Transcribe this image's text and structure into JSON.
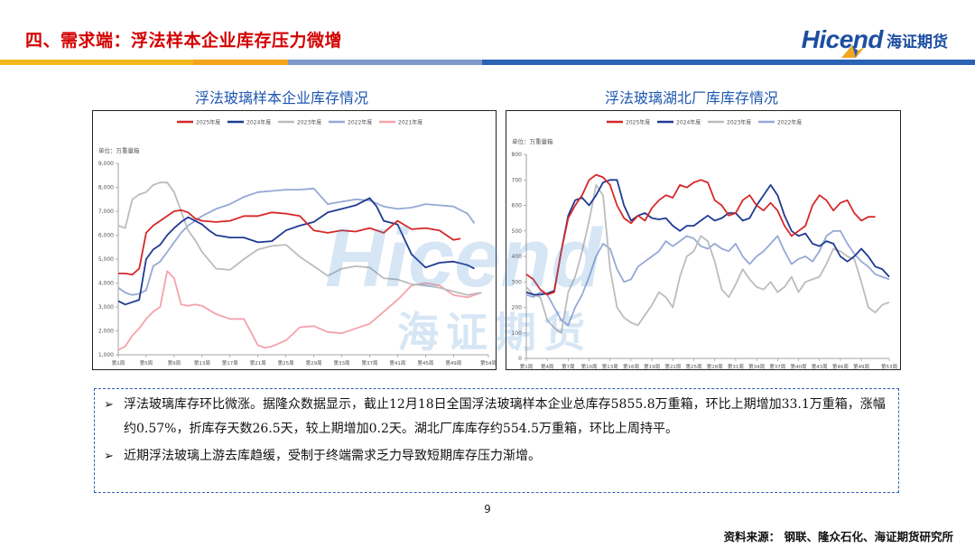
{
  "header": {
    "title": "四、需求端：浮法样本企业库存压力微增",
    "logo_en": "Hicend",
    "logo_cn": "海证期货",
    "colors": {
      "title": "#d40000",
      "brand": "#1c4ea1"
    }
  },
  "watermark": {
    "en": "Hicend",
    "cn": "海证期货"
  },
  "chart_data": [
    {
      "type": "line",
      "title": "浮法玻璃样本企业库存情况",
      "unit": "单位：万重量箱",
      "ylim": [
        1000,
        9000
      ],
      "yticks": [
        "1,000",
        "2,000",
        "3,000",
        "4,000",
        "5,000",
        "6,000",
        "7,000",
        "8,000",
        "9,000"
      ],
      "xlim": [
        1,
        54
      ],
      "xticks": [
        {
          "w": 1,
          "label": "第1周"
        },
        {
          "w": 5,
          "label": "第5周"
        },
        {
          "w": 9,
          "label": "第9周"
        },
        {
          "w": 13,
          "label": "第13周"
        },
        {
          "w": 17,
          "label": "第17周"
        },
        {
          "w": 21,
          "label": "第21周"
        },
        {
          "w": 25,
          "label": "第25周"
        },
        {
          "w": 29,
          "label": "第29周"
        },
        {
          "w": 33,
          "label": "第33周"
        },
        {
          "w": 37,
          "label": "第37周"
        },
        {
          "w": 41,
          "label": "第41周"
        },
        {
          "w": 45,
          "label": "第45周"
        },
        {
          "w": 49,
          "label": "第49周"
        },
        {
          "w": 54,
          "label": "第54周"
        }
      ],
      "legend_position": "top",
      "series": [
        {
          "name": "2025年度",
          "color": "#d62728",
          "x": [
            1,
            2,
            3,
            4,
            5,
            6,
            7,
            8,
            9,
            10,
            11,
            12,
            13,
            15,
            17,
            19,
            21,
            23,
            25,
            27,
            29,
            31,
            33,
            35,
            37,
            39,
            41,
            43,
            45,
            47,
            49,
            50
          ],
          "y": [
            4400,
            4400,
            4350,
            4600,
            6100,
            6400,
            6600,
            6800,
            7000,
            7050,
            6950,
            6700,
            6600,
            6550,
            6600,
            6800,
            6800,
            6950,
            6900,
            6800,
            6200,
            6100,
            6200,
            6150,
            6300,
            6100,
            6600,
            6250,
            6300,
            6200,
            5800,
            5856
          ]
        },
        {
          "name": "2024年度",
          "color": "#1f3a93",
          "x": [
            1,
            2,
            3,
            4,
            5,
            6,
            7,
            8,
            9,
            10,
            11,
            12,
            13,
            14,
            15,
            17,
            19,
            21,
            23,
            25,
            27,
            29,
            31,
            33,
            35,
            37,
            38,
            39,
            41,
            43,
            45,
            47,
            49,
            51,
            52
          ],
          "y": [
            3250,
            3100,
            3200,
            3300,
            5000,
            5400,
            5600,
            6000,
            6300,
            6550,
            6750,
            6600,
            6450,
            6200,
            6000,
            5900,
            5900,
            5700,
            5750,
            6200,
            6400,
            6550,
            6950,
            7100,
            7250,
            7550,
            7200,
            6600,
            6450,
            5200,
            4650,
            4850,
            4900,
            4750,
            4600
          ]
        },
        {
          "name": "2023年度",
          "color": "#bcbcbc",
          "x": [
            1,
            2,
            3,
            4,
            5,
            6,
            7,
            8,
            9,
            10,
            11,
            12,
            13,
            15,
            17,
            19,
            21,
            23,
            25,
            27,
            29,
            31,
            33,
            35,
            37,
            39,
            41,
            43,
            45,
            47,
            49,
            51,
            53
          ],
          "y": [
            6400,
            6300,
            7500,
            7700,
            7800,
            8100,
            8200,
            8200,
            7800,
            7000,
            6200,
            5800,
            5300,
            4600,
            4550,
            5000,
            5400,
            5550,
            5600,
            5100,
            4700,
            4300,
            4600,
            4700,
            4650,
            4200,
            4150,
            3950,
            3900,
            3800,
            3650,
            3500,
            3600
          ]
        },
        {
          "name": "2022年度",
          "color": "#95a8d6",
          "x": [
            1,
            2,
            3,
            4,
            5,
            6,
            7,
            8,
            9,
            10,
            11,
            12,
            13,
            15,
            17,
            19,
            21,
            23,
            25,
            27,
            29,
            31,
            33,
            35,
            37,
            39,
            41,
            43,
            45,
            47,
            49,
            51,
            52
          ],
          "y": [
            3800,
            3600,
            3500,
            3550,
            3700,
            4700,
            4900,
            5300,
            5700,
            6100,
            6400,
            6600,
            6800,
            7100,
            7300,
            7600,
            7800,
            7850,
            7900,
            7900,
            7950,
            7300,
            7400,
            7500,
            7450,
            7200,
            7100,
            7150,
            7300,
            7250,
            7200,
            6900,
            6500
          ]
        },
        {
          "name": "2021年度",
          "color": "#f4a3ab",
          "x": [
            1,
            2,
            3,
            4,
            5,
            6,
            7,
            8,
            9,
            10,
            11,
            12,
            13,
            15,
            17,
            19,
            21,
            22,
            23,
            25,
            27,
            29,
            31,
            33,
            35,
            37,
            39,
            41,
            43,
            45,
            47,
            49,
            51,
            53
          ],
          "y": [
            1200,
            1350,
            1800,
            2100,
            2500,
            2800,
            3000,
            4500,
            4200,
            3100,
            3050,
            3100,
            3050,
            2700,
            2500,
            2500,
            1400,
            1300,
            1350,
            1600,
            2150,
            2200,
            1950,
            1900,
            2100,
            2300,
            2800,
            3300,
            3900,
            4000,
            3900,
            3500,
            3400,
            3600
          ]
        }
      ]
    },
    {
      "type": "line",
      "title": "浮法玻璃湖北厂库库存情况",
      "unit": "单位：万重量箱",
      "ylim": [
        0,
        800
      ],
      "yticks": [
        "0",
        "100",
        "200",
        "300",
        "400",
        "500",
        "600",
        "700",
        "800"
      ],
      "xlim": [
        1,
        53
      ],
      "xticks": [
        {
          "w": 1,
          "label": "第1周"
        },
        {
          "w": 4,
          "label": "第4周"
        },
        {
          "w": 7,
          "label": "第7周"
        },
        {
          "w": 10,
          "label": "第10周"
        },
        {
          "w": 13,
          "label": "第13周"
        },
        {
          "w": 16,
          "label": "第16周"
        },
        {
          "w": 19,
          "label": "第19周"
        },
        {
          "w": 22,
          "label": "第22周"
        },
        {
          "w": 25,
          "label": "第25周"
        },
        {
          "w": 28,
          "label": "第28周"
        },
        {
          "w": 31,
          "label": "第31周"
        },
        {
          "w": 34,
          "label": "第34周"
        },
        {
          "w": 37,
          "label": "第37周"
        },
        {
          "w": 40,
          "label": "第40周"
        },
        {
          "w": 43,
          "label": "第43周"
        },
        {
          "w": 46,
          "label": "第46周"
        },
        {
          "w": 49,
          "label": "第49周"
        },
        {
          "w": 53,
          "label": "第53周"
        }
      ],
      "legend_position": "top",
      "series": [
        {
          "name": "2025年度",
          "color": "#d62728",
          "x": [
            1,
            2,
            3,
            4,
            5,
            6,
            7,
            8,
            9,
            10,
            11,
            12,
            13,
            14,
            15,
            16,
            17,
            18,
            19,
            20,
            21,
            22,
            23,
            24,
            25,
            26,
            27,
            28,
            29,
            30,
            31,
            32,
            33,
            34,
            35,
            36,
            37,
            38,
            39,
            40,
            41,
            42,
            43,
            44,
            45,
            46,
            47,
            48,
            49,
            50,
            51
          ],
          "y": [
            330,
            310,
            270,
            250,
            260,
            420,
            550,
            600,
            640,
            700,
            720,
            710,
            680,
            600,
            550,
            530,
            560,
            540,
            590,
            620,
            640,
            630,
            680,
            670,
            690,
            700,
            690,
            620,
            600,
            560,
            570,
            620,
            640,
            600,
            580,
            610,
            580,
            520,
            480,
            500,
            520,
            600,
            640,
            620,
            580,
            610,
            620,
            570,
            540,
            555,
            555
          ]
        },
        {
          "name": "2024年度",
          "color": "#1f3a93",
          "x": [
            1,
            2,
            3,
            4,
            5,
            6,
            7,
            8,
            9,
            10,
            11,
            12,
            13,
            14,
            15,
            16,
            17,
            18,
            19,
            20,
            21,
            22,
            23,
            24,
            25,
            26,
            27,
            28,
            29,
            30,
            31,
            32,
            33,
            34,
            35,
            36,
            37,
            38,
            39,
            40,
            41,
            42,
            43,
            44,
            45,
            46,
            47,
            48,
            49,
            50,
            51,
            52,
            53
          ],
          "y": [
            260,
            250,
            250,
            255,
            265,
            420,
            560,
            620,
            630,
            600,
            640,
            690,
            700,
            700,
            600,
            540,
            560,
            570,
            550,
            545,
            550,
            520,
            500,
            520,
            520,
            540,
            560,
            540,
            550,
            570,
            570,
            540,
            550,
            600,
            640,
            680,
            640,
            560,
            500,
            480,
            490,
            450,
            440,
            460,
            450,
            400,
            380,
            400,
            430,
            400,
            360,
            350,
            320
          ]
        },
        {
          "name": "2023年度",
          "color": "#bcbcbc",
          "x": [
            1,
            2,
            3,
            4,
            5,
            6,
            7,
            8,
            9,
            10,
            11,
            12,
            13,
            14,
            15,
            16,
            17,
            18,
            19,
            20,
            21,
            22,
            23,
            24,
            25,
            26,
            27,
            28,
            29,
            30,
            31,
            32,
            33,
            34,
            35,
            36,
            37,
            38,
            39,
            40,
            41,
            42,
            43,
            44,
            45,
            46,
            47,
            48,
            49,
            50,
            51,
            52,
            53
          ],
          "y": [
            280,
            250,
            240,
            150,
            120,
            100,
            260,
            320,
            420,
            540,
            680,
            640,
            350,
            200,
            160,
            140,
            130,
            170,
            210,
            260,
            240,
            200,
            320,
            400,
            420,
            480,
            460,
            380,
            270,
            240,
            290,
            350,
            310,
            280,
            270,
            300,
            260,
            280,
            320,
            260,
            300,
            310,
            320,
            370,
            430,
            420,
            400,
            390,
            300,
            200,
            180,
            210,
            220
          ]
        },
        {
          "name": "2022年度",
          "color": "#95a8d6",
          "x": [
            1,
            2,
            3,
            4,
            5,
            6,
            7,
            8,
            9,
            10,
            11,
            12,
            13,
            14,
            15,
            16,
            17,
            18,
            19,
            20,
            21,
            22,
            23,
            24,
            25,
            26,
            27,
            28,
            29,
            30,
            31,
            32,
            33,
            34,
            35,
            36,
            37,
            38,
            39,
            40,
            41,
            42,
            43,
            44,
            45,
            46,
            47,
            48,
            49,
            50,
            51,
            52,
            53
          ],
          "y": [
            250,
            240,
            260,
            250,
            200,
            150,
            130,
            200,
            250,
            320,
            400,
            450,
            430,
            350,
            300,
            310,
            360,
            380,
            400,
            420,
            460,
            440,
            460,
            480,
            470,
            440,
            430,
            450,
            430,
            420,
            450,
            400,
            370,
            400,
            420,
            450,
            480,
            420,
            370,
            390,
            400,
            380,
            420,
            480,
            500,
            500,
            450,
            410,
            380,
            360,
            330,
            320,
            310
          ]
        }
      ]
    }
  ],
  "summary": {
    "bullets": [
      "浮法玻璃库存环比微涨。据隆众数据显示，截止12月18日全国浮法玻璃样本企业总库存5855.8万重箱，环比上期增加33.1万重箱，涨幅约0.57%，折库存天数26.5天，较上期增加0.2天。湖北厂库库存约554.5万重箱，环比上周持平。",
      "近期浮法玻璃上游去库趋缓，受制于终端需求乏力导致短期库存压力渐增。"
    ]
  },
  "footer": {
    "page_number": "9",
    "source": "资料来源： 钢联、隆众石化、海证期货研究所"
  }
}
